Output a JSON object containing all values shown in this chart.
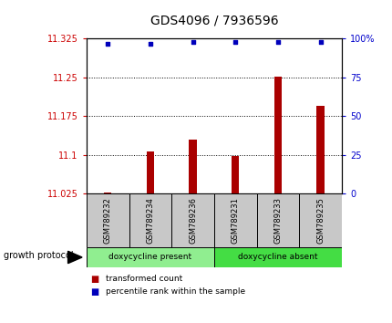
{
  "title": "GDS4096 / 7936596",
  "samples": [
    "GSM789232",
    "GSM789234",
    "GSM789236",
    "GSM789231",
    "GSM789233",
    "GSM789235"
  ],
  "bar_values": [
    11.027,
    11.107,
    11.13,
    11.098,
    11.252,
    11.195
  ],
  "percentile_values": [
    97,
    97,
    98,
    98,
    98,
    98
  ],
  "y_min": 11.025,
  "y_max": 11.325,
  "y_ticks": [
    11.025,
    11.1,
    11.175,
    11.25,
    11.325
  ],
  "y_tick_labels": [
    "11.025",
    "11.1",
    "11.175",
    "11.25",
    "11.325"
  ],
  "y2_ticks": [
    0,
    25,
    50,
    75,
    100
  ],
  "y2_tick_labels": [
    "0",
    "25",
    "50",
    "75",
    "100%"
  ],
  "bar_color": "#AA0000",
  "dot_color": "#0000BB",
  "group_colors": [
    "#90EE90",
    "#44DD44"
  ],
  "group_labels": [
    "doxycycline present",
    "doxycycline absent"
  ],
  "group_ranges": [
    [
      0,
      3
    ],
    [
      3,
      6
    ]
  ],
  "group_label": "growth protocol",
  "legend_red_label": "transformed count",
  "legend_blue_label": "percentile rank within the sample",
  "bg_color": "#FFFFFF",
  "plot_bg": "#FFFFFF",
  "dotted_lines": [
    11.1,
    11.175,
    11.25
  ],
  "title_fontsize": 10,
  "tick_fontsize": 7,
  "bar_width": 0.18,
  "cell_bg": "#C8C8C8"
}
